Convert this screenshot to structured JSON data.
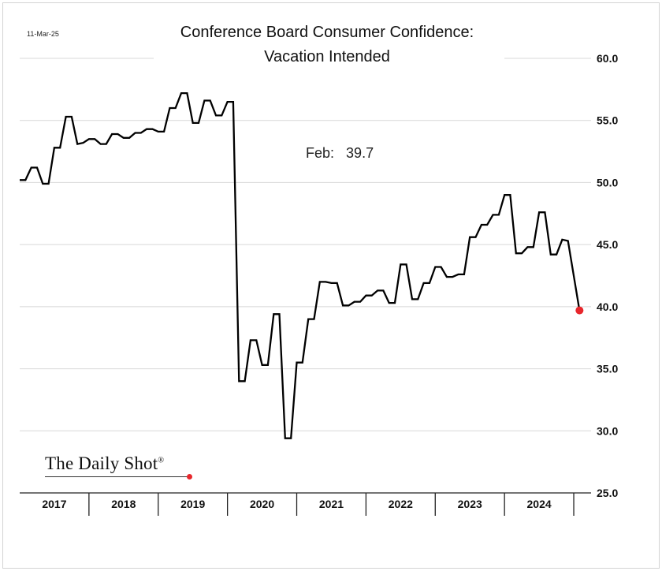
{
  "date_stamp": "11-Mar-25",
  "annotation": {
    "label": "Feb:",
    "value": "39.7"
  },
  "logo": {
    "text": "The Daily Shot",
    "mark": "®"
  },
  "chart_data": {
    "type": "line",
    "title": "Conference Board Consumer Confidence:",
    "subtitle": "Vacation Intended",
    "xlabel": "",
    "ylabel": "",
    "ylim": [
      25,
      60
    ],
    "yticks": [
      25,
      30,
      35,
      40,
      45,
      50,
      55,
      60
    ],
    "ytick_labels": [
      "25.0",
      "30.0",
      "35.0",
      "40.0",
      "45.0",
      "50.0",
      "55.0",
      "60.0"
    ],
    "y_axis_side": "right",
    "grid": true,
    "xlim": [
      2017,
      2025.25
    ],
    "year_labels": [
      "2017",
      "2018",
      "2019",
      "2020",
      "2021",
      "2022",
      "2023",
      "2024"
    ],
    "series": [
      {
        "name": "Vacation Intended",
        "color": "#000000",
        "last_point_color": "#e8272c",
        "points": [
          [
            2017.0,
            50.2
          ],
          [
            2017.083,
            50.2
          ],
          [
            2017.167,
            51.2
          ],
          [
            2017.25,
            51.2
          ],
          [
            2017.333,
            49.9
          ],
          [
            2017.417,
            49.9
          ],
          [
            2017.5,
            52.8
          ],
          [
            2017.583,
            52.8
          ],
          [
            2017.667,
            55.3
          ],
          [
            2017.75,
            55.3
          ],
          [
            2017.833,
            53.1
          ],
          [
            2017.917,
            53.2
          ],
          [
            2018.0,
            53.5
          ],
          [
            2018.083,
            53.5
          ],
          [
            2018.167,
            53.1
          ],
          [
            2018.25,
            53.1
          ],
          [
            2018.333,
            53.9
          ],
          [
            2018.417,
            53.9
          ],
          [
            2018.5,
            53.6
          ],
          [
            2018.583,
            53.6
          ],
          [
            2018.667,
            54.0
          ],
          [
            2018.75,
            54.0
          ],
          [
            2018.833,
            54.3
          ],
          [
            2018.917,
            54.3
          ],
          [
            2019.0,
            54.1
          ],
          [
            2019.083,
            54.1
          ],
          [
            2019.167,
            56.0
          ],
          [
            2019.25,
            56.0
          ],
          [
            2019.333,
            57.2
          ],
          [
            2019.417,
            57.2
          ],
          [
            2019.5,
            54.8
          ],
          [
            2019.583,
            54.8
          ],
          [
            2019.667,
            56.6
          ],
          [
            2019.75,
            56.6
          ],
          [
            2019.833,
            55.4
          ],
          [
            2019.917,
            55.4
          ],
          [
            2020.0,
            56.5
          ],
          [
            2020.083,
            56.5
          ],
          [
            2020.167,
            34.0
          ],
          [
            2020.25,
            34.0
          ],
          [
            2020.333,
            37.3
          ],
          [
            2020.417,
            37.3
          ],
          [
            2020.5,
            35.3
          ],
          [
            2020.583,
            35.3
          ],
          [
            2020.667,
            39.4
          ],
          [
            2020.75,
            39.4
          ],
          [
            2020.833,
            29.4
          ],
          [
            2020.917,
            29.4
          ],
          [
            2021.0,
            35.5
          ],
          [
            2021.083,
            35.5
          ],
          [
            2021.167,
            39.0
          ],
          [
            2021.25,
            39.0
          ],
          [
            2021.333,
            42.0
          ],
          [
            2021.417,
            42.0
          ],
          [
            2021.5,
            41.9
          ],
          [
            2021.583,
            41.9
          ],
          [
            2021.667,
            40.1
          ],
          [
            2021.75,
            40.1
          ],
          [
            2021.833,
            40.4
          ],
          [
            2021.917,
            40.4
          ],
          [
            2022.0,
            40.9
          ],
          [
            2022.083,
            40.9
          ],
          [
            2022.167,
            41.3
          ],
          [
            2022.25,
            41.3
          ],
          [
            2022.333,
            40.3
          ],
          [
            2022.417,
            40.3
          ],
          [
            2022.5,
            43.4
          ],
          [
            2022.583,
            43.4
          ],
          [
            2022.667,
            40.6
          ],
          [
            2022.75,
            40.6
          ],
          [
            2022.833,
            41.9
          ],
          [
            2022.917,
            41.9
          ],
          [
            2023.0,
            43.2
          ],
          [
            2023.083,
            43.2
          ],
          [
            2023.167,
            42.4
          ],
          [
            2023.25,
            42.4
          ],
          [
            2023.333,
            42.6
          ],
          [
            2023.417,
            42.6
          ],
          [
            2023.5,
            45.6
          ],
          [
            2023.583,
            45.6
          ],
          [
            2023.667,
            46.6
          ],
          [
            2023.75,
            46.6
          ],
          [
            2023.833,
            47.4
          ],
          [
            2023.917,
            47.4
          ],
          [
            2024.0,
            49.0
          ],
          [
            2024.083,
            49.0
          ],
          [
            2024.167,
            44.3
          ],
          [
            2024.25,
            44.3
          ],
          [
            2024.333,
            44.8
          ],
          [
            2024.417,
            44.8
          ],
          [
            2024.5,
            47.6
          ],
          [
            2024.583,
            47.6
          ],
          [
            2024.667,
            44.2
          ],
          [
            2024.75,
            44.2
          ],
          [
            2024.833,
            45.4
          ],
          [
            2024.917,
            45.3
          ],
          [
            2025.083,
            39.7
          ]
        ]
      }
    ]
  }
}
